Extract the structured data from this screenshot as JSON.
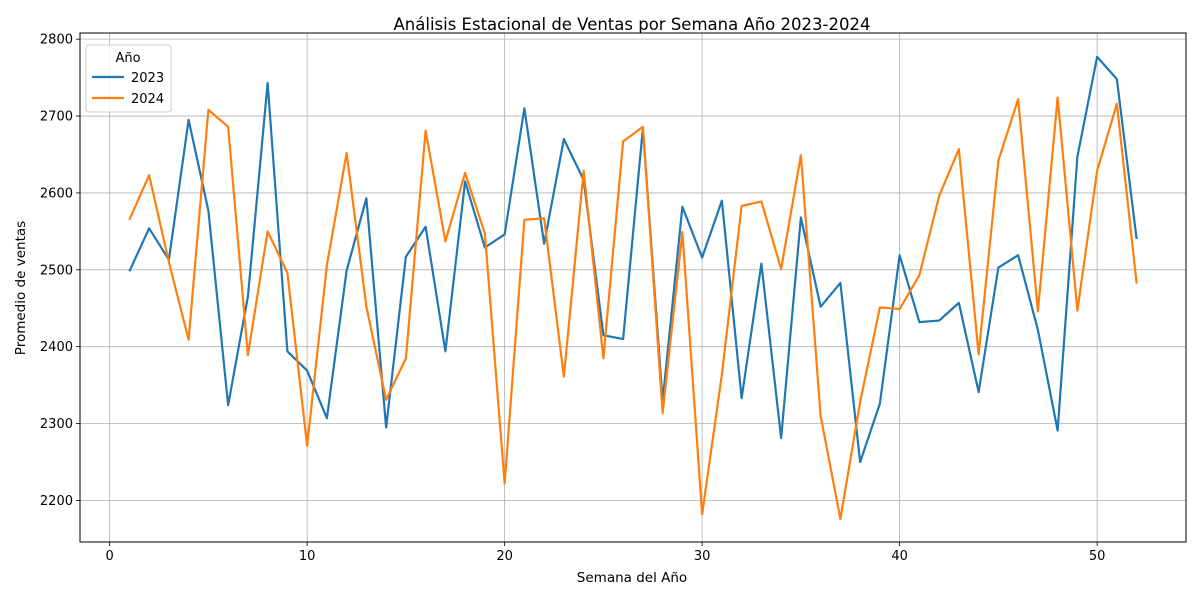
{
  "chart_data": {
    "type": "line",
    "title": "Análisis Estacional de Ventas por Semana Año 2023-2024",
    "xlabel": "Semana del Año",
    "ylabel": "Promedio de ventas",
    "xlim": [
      -1.5,
      54.5
    ],
    "ylim": [
      2146,
      2808
    ],
    "xticks": [
      0,
      10,
      20,
      30,
      40,
      50
    ],
    "yticks": [
      2200,
      2300,
      2400,
      2500,
      2600,
      2700,
      2800
    ],
    "grid": true,
    "legend": {
      "title": "Año",
      "placement": "top-left"
    },
    "x": [
      1,
      2,
      3,
      4,
      5,
      6,
      7,
      8,
      9,
      10,
      11,
      12,
      13,
      14,
      15,
      16,
      17,
      18,
      19,
      20,
      21,
      22,
      23,
      24,
      25,
      26,
      27,
      28,
      29,
      30,
      31,
      32,
      33,
      34,
      35,
      36,
      37,
      38,
      39,
      40,
      41,
      42,
      43,
      44,
      45,
      46,
      47,
      48,
      49,
      50,
      51,
      52
    ],
    "series": [
      {
        "name": "2023",
        "color": "#1f77b4",
        "values": [
          2498,
          2554,
          2513,
          2695,
          2577,
          2324,
          2465,
          2743,
          2394,
          2369,
          2307,
          2499,
          2593,
          2295,
          2517,
          2556,
          2394,
          2615,
          2529,
          2546,
          2710,
          2534,
          2670,
          2617,
          2415,
          2410,
          2684,
          2329,
          2582,
          2516,
          2590,
          2333,
          2508,
          2281,
          2568,
          2452,
          2483,
          2250,
          2326,
          2519,
          2432,
          2434,
          2457,
          2341,
          2503,
          2519,
          2422,
          2291,
          2647,
          2777,
          2748,
          2540
        ]
      },
      {
        "name": "2024",
        "color": "#ff7f0e",
        "values": [
          2565,
          2623,
          2510,
          2409,
          2708,
          2686,
          2389,
          2550,
          2496,
          2271,
          2506,
          2652,
          2452,
          2331,
          2385,
          2681,
          2537,
          2626,
          2547,
          2222,
          2565,
          2567,
          2361,
          2629,
          2385,
          2667,
          2686,
          2314,
          2549,
          2182,
          2364,
          2583,
          2589,
          2501,
          2649,
          2310,
          2176,
          2328,
          2451,
          2449,
          2493,
          2596,
          2657,
          2390,
          2642,
          2722,
          2446,
          2724,
          2447,
          2629,
          2716,
          2482
        ]
      }
    ]
  }
}
